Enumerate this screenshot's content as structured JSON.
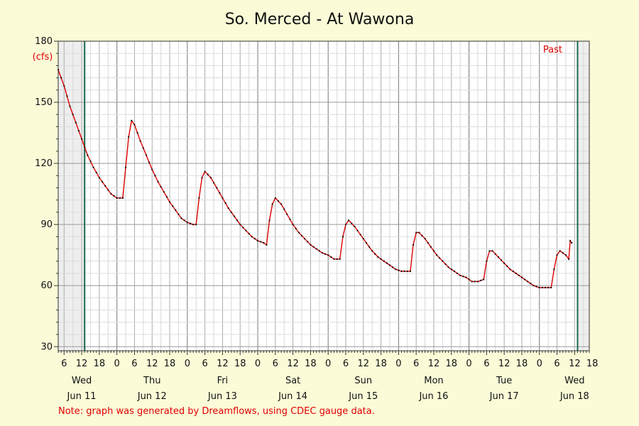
{
  "chart_data": {
    "type": "line",
    "title": "So. Merced - At Wawona",
    "yunit": "(cfs)",
    "ylim": [
      28,
      180
    ],
    "yticks": [
      30,
      60,
      90,
      120,
      150,
      180
    ],
    "xlim": [
      "2025-06-11T04:00",
      "2025-06-18T17:00"
    ],
    "hour_ticks": [
      "6",
      "12",
      "18",
      "0",
      "6",
      "12",
      "18",
      "0",
      "6",
      "12",
      "18",
      "0",
      "6",
      "12",
      "18",
      "0",
      "6",
      "12",
      "18",
      "0",
      "6",
      "12",
      "18",
      "0",
      "6",
      "12",
      "18",
      "0",
      "6",
      "12",
      "18"
    ],
    "day_labels": [
      {
        "day": "Wed",
        "date": "Jun 11"
      },
      {
        "day": "Thu",
        "date": "Jun 12"
      },
      {
        "day": "Fri",
        "date": "Jun 13"
      },
      {
        "day": "Sat",
        "date": "Jun 14"
      },
      {
        "day": "Sun",
        "date": "Jun 15"
      },
      {
        "day": "Mon",
        "date": "Jun 16"
      },
      {
        "day": "Tue",
        "date": "Jun 17"
      },
      {
        "day": "Wed",
        "date": "Jun 18"
      }
    ],
    "past_label": "Past",
    "markers": [
      "2025-06-11T13:00",
      "2025-06-18T13:00"
    ],
    "grid": true,
    "line_color": "#e00000",
    "series": [
      {
        "values": [
          [
            "2025-06-11T04:00",
            166
          ],
          [
            "2025-06-11T06:00",
            158
          ],
          [
            "2025-06-11T08:00",
            148
          ],
          [
            "2025-06-11T10:00",
            140
          ],
          [
            "2025-06-11T12:00",
            132
          ],
          [
            "2025-06-11T14:00",
            124
          ],
          [
            "2025-06-11T16:00",
            118
          ],
          [
            "2025-06-11T18:00",
            113
          ],
          [
            "2025-06-11T20:00",
            109
          ],
          [
            "2025-06-11T22:00",
            105
          ],
          [
            "2025-06-12T00:00",
            103
          ],
          [
            "2025-06-12T02:00",
            103
          ],
          [
            "2025-06-12T03:00",
            118
          ],
          [
            "2025-06-12T04:00",
            133
          ],
          [
            "2025-06-12T05:00",
            141
          ],
          [
            "2025-06-12T06:00",
            139
          ],
          [
            "2025-06-12T08:00",
            131
          ],
          [
            "2025-06-12T10:00",
            124
          ],
          [
            "2025-06-12T12:00",
            117
          ],
          [
            "2025-06-12T14:00",
            111
          ],
          [
            "2025-06-12T16:00",
            106
          ],
          [
            "2025-06-12T18:00",
            101
          ],
          [
            "2025-06-12T20:00",
            97
          ],
          [
            "2025-06-12T22:00",
            93
          ],
          [
            "2025-06-13T00:00",
            91
          ],
          [
            "2025-06-13T02:00",
            90
          ],
          [
            "2025-06-13T03:00",
            90
          ],
          [
            "2025-06-13T04:00",
            103
          ],
          [
            "2025-06-13T05:00",
            113
          ],
          [
            "2025-06-13T06:00",
            116
          ],
          [
            "2025-06-13T08:00",
            113
          ],
          [
            "2025-06-13T10:00",
            108
          ],
          [
            "2025-06-13T12:00",
            103
          ],
          [
            "2025-06-13T14:00",
            98
          ],
          [
            "2025-06-13T16:00",
            94
          ],
          [
            "2025-06-13T18:00",
            90
          ],
          [
            "2025-06-13T20:00",
            87
          ],
          [
            "2025-06-13T22:00",
            84
          ],
          [
            "2025-06-14T00:00",
            82
          ],
          [
            "2025-06-14T02:00",
            81
          ],
          [
            "2025-06-14T03:00",
            80
          ],
          [
            "2025-06-14T04:00",
            92
          ],
          [
            "2025-06-14T05:00",
            100
          ],
          [
            "2025-06-14T06:00",
            103
          ],
          [
            "2025-06-14T08:00",
            100
          ],
          [
            "2025-06-14T10:00",
            95
          ],
          [
            "2025-06-14T12:00",
            90
          ],
          [
            "2025-06-14T14:00",
            86
          ],
          [
            "2025-06-14T16:00",
            83
          ],
          [
            "2025-06-14T18:00",
            80
          ],
          [
            "2025-06-14T20:00",
            78
          ],
          [
            "2025-06-14T22:00",
            76
          ],
          [
            "2025-06-15T00:00",
            75
          ],
          [
            "2025-06-15T02:00",
            73
          ],
          [
            "2025-06-15T04:00",
            73
          ],
          [
            "2025-06-15T05:00",
            84
          ],
          [
            "2025-06-15T06:00",
            90
          ],
          [
            "2025-06-15T07:00",
            92
          ],
          [
            "2025-06-15T09:00",
            89
          ],
          [
            "2025-06-15T11:00",
            85
          ],
          [
            "2025-06-15T13:00",
            81
          ],
          [
            "2025-06-15T15:00",
            77
          ],
          [
            "2025-06-15T17:00",
            74
          ],
          [
            "2025-06-15T19:00",
            72
          ],
          [
            "2025-06-15T21:00",
            70
          ],
          [
            "2025-06-15T23:00",
            68
          ],
          [
            "2025-06-16T01:00",
            67
          ],
          [
            "2025-06-16T03:00",
            67
          ],
          [
            "2025-06-16T04:00",
            67
          ],
          [
            "2025-06-16T05:00",
            80
          ],
          [
            "2025-06-16T06:00",
            86
          ],
          [
            "2025-06-16T07:00",
            86
          ],
          [
            "2025-06-16T09:00",
            83
          ],
          [
            "2025-06-16T11:00",
            79
          ],
          [
            "2025-06-16T13:00",
            75
          ],
          [
            "2025-06-16T15:00",
            72
          ],
          [
            "2025-06-16T17:00",
            69
          ],
          [
            "2025-06-16T19:00",
            67
          ],
          [
            "2025-06-16T21:00",
            65
          ],
          [
            "2025-06-16T23:00",
            64
          ],
          [
            "2025-06-17T01:00",
            62
          ],
          [
            "2025-06-17T03:00",
            62
          ],
          [
            "2025-06-17T05:00",
            63
          ],
          [
            "2025-06-17T06:00",
            72
          ],
          [
            "2025-06-17T07:00",
            77
          ],
          [
            "2025-06-17T08:00",
            77
          ],
          [
            "2025-06-17T10:00",
            74
          ],
          [
            "2025-06-17T12:00",
            71
          ],
          [
            "2025-06-17T14:00",
            68
          ],
          [
            "2025-06-17T16:00",
            66
          ],
          [
            "2025-06-17T18:00",
            64
          ],
          [
            "2025-06-17T20:00",
            62
          ],
          [
            "2025-06-17T22:00",
            60
          ],
          [
            "2025-06-18T00:00",
            59
          ],
          [
            "2025-06-18T02:00",
            59
          ],
          [
            "2025-06-18T04:00",
            59
          ],
          [
            "2025-06-18T05:00",
            68
          ],
          [
            "2025-06-18T06:00",
            75
          ],
          [
            "2025-06-18T07:00",
            77
          ],
          [
            "2025-06-18T08:00",
            76
          ],
          [
            "2025-06-18T09:00",
            75
          ],
          [
            "2025-06-18T10:00",
            73
          ],
          [
            "2025-06-18T10:30",
            82
          ],
          [
            "2025-06-18T11:00",
            81
          ]
        ]
      }
    ]
  },
  "note": "Note: graph was generated by Dreamflows, using CDEC gauge data."
}
